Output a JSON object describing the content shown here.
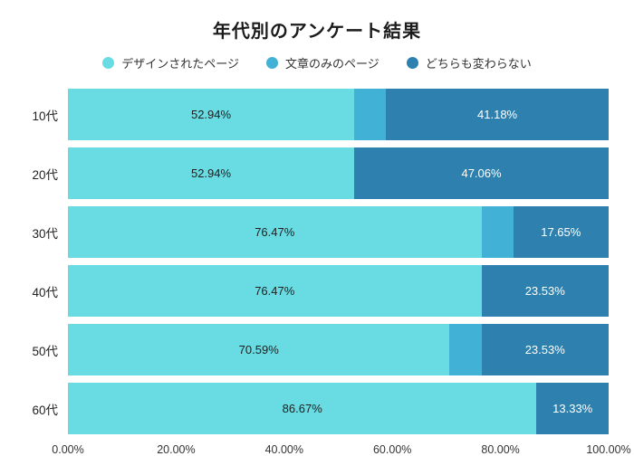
{
  "chart_data": {
    "type": "bar",
    "orientation": "horizontal",
    "stacked": true,
    "title": "年代別のアンケート結果",
    "categories": [
      "10代",
      "20代",
      "30代",
      "40代",
      "50代",
      "60代"
    ],
    "series": [
      {
        "name": "デザインされたページ",
        "color": "#69DCE3",
        "label_color": "#1f1f1f",
        "values": [
          52.94,
          52.94,
          76.47,
          76.47,
          70.59,
          86.67
        ]
      },
      {
        "name": "文章のみのページ",
        "color": "#41B2D6",
        "label_color": "#1f1f1f",
        "values": [
          5.88,
          0,
          5.88,
          0,
          5.88,
          0
        ]
      },
      {
        "name": "どちらも変わらない",
        "color": "#2E81AF",
        "label_color": "#ffffff",
        "values": [
          41.18,
          47.06,
          17.65,
          23.53,
          23.53,
          13.33
        ]
      }
    ],
    "segment_label_format": "{value}%",
    "label_min_value": 10,
    "x_ticks": [
      "0.00%",
      "20.00%",
      "40.00%",
      "60.00%",
      "80.00%",
      "100.00%"
    ],
    "xlim": [
      0,
      100
    ],
    "grid": false,
    "legend_position": "top"
  }
}
